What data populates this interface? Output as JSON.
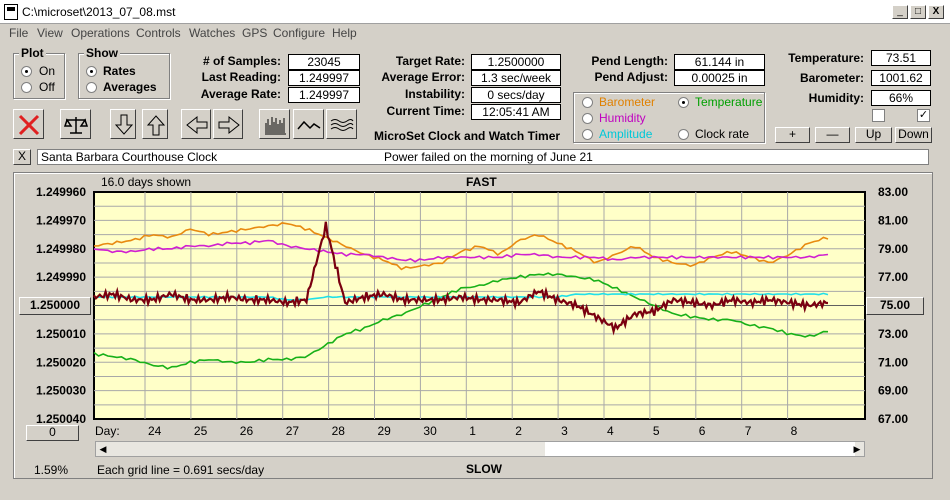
{
  "window": {
    "title": "C:\\microset\\2013_07_08.mst",
    "buttons": {
      "min": "_",
      "max": "□",
      "close": "X"
    }
  },
  "menu": [
    "File",
    "View",
    "Operations",
    "Controls",
    "Watches",
    "GPS",
    "Configure",
    "Help"
  ],
  "plot_group": {
    "title": "Plot",
    "options": [
      "On",
      "Off"
    ],
    "selected": "On"
  },
  "show_group": {
    "title": "Show",
    "options": [
      "Rates",
      "Averages"
    ],
    "selected": "Rates"
  },
  "stats": {
    "samples_label": "# of Samples:",
    "samples": "23045",
    "last_label": "Last Reading:",
    "last": "1.249997",
    "avg_label": "Average Rate:",
    "avg": "1.249997"
  },
  "rates": {
    "target_label": "Target Rate:",
    "target": "1.2500000",
    "err_label": "Average Error:",
    "err": "1.3 sec/week",
    "instab_label": "Instability:",
    "instab": "0 secs/day",
    "time_label": "Current Time:",
    "time": "12:05:41 AM",
    "app_name": "MicroSet Clock and Watch Timer"
  },
  "pend": {
    "length_label": "Pend Length:",
    "length": "61.144 in",
    "adjust_label": "Pend Adjust:",
    "adjust": "0.00025 in"
  },
  "sensors": {
    "options": [
      {
        "label": "Barometer",
        "color": "#e08000"
      },
      {
        "label": "Temperature",
        "color": "#00a000"
      },
      {
        "label": "Humidity",
        "color": "#c000c0"
      },
      {
        "label": "Amplitude",
        "color": "#00c8d8"
      },
      {
        "label": "Clock rate",
        "color": "#000000"
      }
    ],
    "selected": "Temperature"
  },
  "env": {
    "temp_label": "Temperature:",
    "temp": "73.51",
    "baro_label": "Barometer:",
    "baro": "1001.62",
    "hum_label": "Humidity:",
    "hum": "66%",
    "buttons": {
      "plus": "+",
      "minus": "—",
      "up": "Up",
      "down": "Down"
    },
    "checkbox1_checked": false,
    "checkbox2_checked": true
  },
  "note": {
    "close": "X",
    "clock": "Santa Barbara Courthouse Clock",
    "message": "Power failed on the morning of June 21"
  },
  "chart_header": {
    "days_shown": "16.0 days shown",
    "fast": "FAST",
    "slow": "SLOW",
    "grid_note": "Each grid line = 0.691 secs/day",
    "percent": "1.59%",
    "day_label": "Day:",
    "left_value": "1.250000",
    "right_value": "75.00",
    "scroll_value": "0"
  },
  "chart_data": {
    "type": "line",
    "left_axis": {
      "ticks": [
        "1.249960",
        "1.249970",
        "1.249980",
        "1.249990",
        "1.250000",
        "1.250010",
        "1.250020",
        "1.250030",
        "1.250040"
      ],
      "range": [
        1.24996,
        1.25004
      ]
    },
    "right_axis": {
      "ticks": [
        "83.00",
        "81.00",
        "79.00",
        "77.00",
        "75.00",
        "73.00",
        "71.00",
        "69.00",
        "67.00"
      ],
      "range": [
        83,
        67
      ]
    },
    "x_ticks": [
      "24",
      "25",
      "26",
      "27",
      "28",
      "29",
      "30",
      "1",
      "2",
      "3",
      "4",
      "5",
      "6",
      "7",
      "8"
    ],
    "series": [
      {
        "color": "#e88a10",
        "values": [
          1.249979,
          1.249978,
          1.249977,
          1.249975,
          1.249976,
          1.249973,
          1.249975,
          1.249974,
          1.249973,
          1.249972,
          1.249971,
          1.249973,
          1.249976,
          1.249979,
          1.249982,
          1.249984,
          1.249987,
          1.249986,
          1.249985,
          1.249981,
          1.249979,
          1.249982,
          1.249977,
          1.249975,
          1.249978,
          1.249981,
          1.249985,
          1.249982,
          1.249979,
          1.249983,
          1.249985,
          1.249986,
          1.249983,
          1.249981,
          1.249983,
          1.249985,
          1.249982,
          1.249978,
          1.249976
        ]
      },
      {
        "color": "#d020d0",
        "values": [
          1.24998,
          1.249981,
          1.249981,
          1.24998,
          1.24998,
          1.249979,
          1.249979,
          1.249978,
          1.249978,
          1.249977,
          1.249979,
          1.24998,
          1.249981,
          1.249982,
          1.249982,
          1.249983,
          1.249984,
          1.249984,
          1.249983,
          1.249983,
          1.249983,
          1.249983,
          1.249982,
          1.249982,
          1.249983,
          1.249983,
          1.249983,
          1.249984,
          1.249983,
          1.249983,
          1.249983,
          1.249983,
          1.249983,
          1.249983,
          1.249983,
          1.249983,
          1.249983,
          1.249983,
          1.249982
        ]
      },
      {
        "color": "#18b018",
        "values": [
          1.250017,
          1.250018,
          1.250019,
          1.250021,
          1.250022,
          1.25002,
          1.250019,
          1.25002,
          1.25002,
          1.250019,
          1.250019,
          1.250018,
          1.250014,
          1.25001,
          1.250008,
          1.250005,
          1.250003,
          1.25,
          1.249997,
          1.249994,
          1.249993,
          1.249991,
          1.24999,
          1.249989,
          1.249989,
          1.24999,
          1.249991,
          1.249994,
          1.249997,
          1.25,
          1.250003,
          1.250004,
          1.250005,
          1.250005,
          1.250007,
          1.250008,
          1.25001,
          1.250011,
          1.250009
        ]
      },
      {
        "color": "#20e0e8",
        "values": [
          1.249997,
          1.249997,
          1.249997,
          1.249997,
          1.249997,
          1.249997,
          1.249997,
          1.249997,
          1.249997,
          1.249997,
          1.249998,
          1.249998,
          1.249997,
          1.249997,
          1.249997,
          1.249997,
          1.249997,
          1.249997,
          1.249997,
          1.249997,
          1.249997,
          1.249997,
          1.249997,
          1.249997,
          1.249997,
          1.249996,
          1.249996,
          1.249996,
          1.249996,
          1.249996,
          1.249996,
          1.249996,
          1.249996,
          1.249996,
          1.249996,
          1.249996,
          1.249996,
          1.249996,
          1.249996
        ]
      },
      {
        "color": "#7a0010",
        "values": [
          1.249997,
          1.249996,
          1.249998,
          1.249998,
          1.249996,
          1.249998,
          1.249998,
          1.249997,
          1.249998,
          1.249998,
          1.249999,
          1.249998,
          1.249972,
          1.249999,
          1.249997,
          1.249996,
          1.249998,
          1.249998,
          1.249998,
          1.249997,
          1.249998,
          1.249998,
          1.249999,
          1.249995,
          1.249998,
          1.25,
          1.250004,
          1.250008,
          1.250003,
          1.250002,
          1.249998,
          1.249999,
          1.25,
          1.249998,
          1.249999,
          1.249998,
          1.249999,
          1.25,
          1.249999
        ]
      }
    ],
    "grid": true
  }
}
